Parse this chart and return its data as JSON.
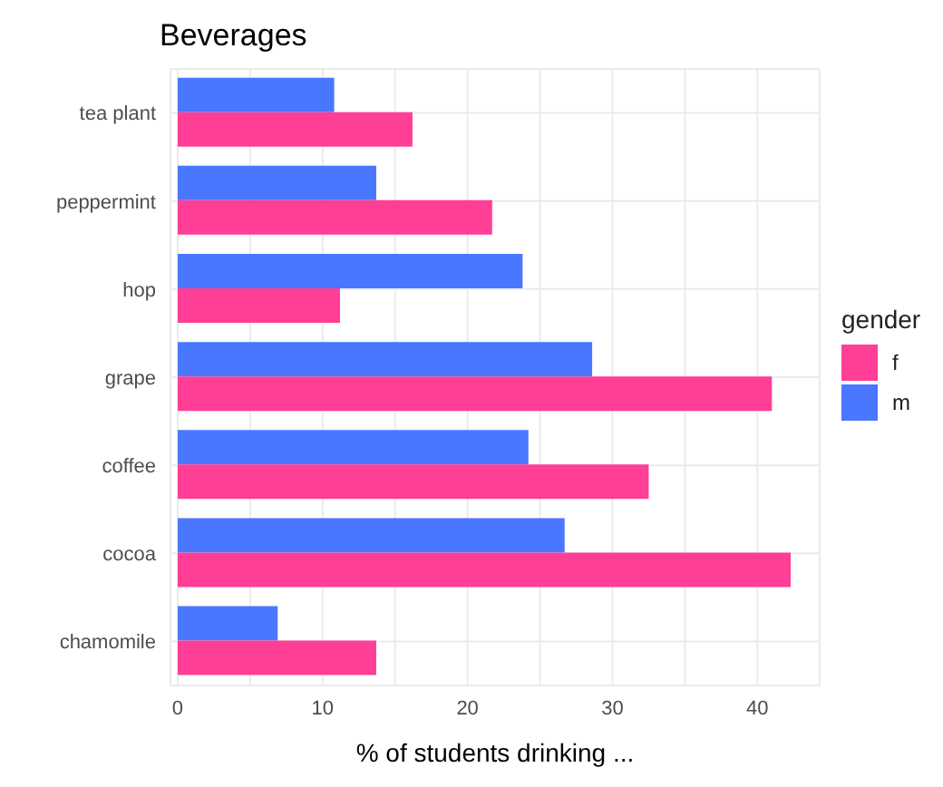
{
  "chart_data": {
    "type": "bar",
    "orientation": "horizontal",
    "title": "Beverages",
    "xlabel": "% of students drinking ...",
    "legend_title": "gender",
    "legend": "right",
    "categories": [
      "tea plant",
      "peppermint",
      "hop",
      "grape",
      "coffee",
      "cocoa",
      "chamomile"
    ],
    "series": [
      {
        "name": "f",
        "color": "#ff3e95",
        "values": [
          16.2,
          21.7,
          11.2,
          41.0,
          32.5,
          42.3,
          13.7
        ]
      },
      {
        "name": "m",
        "color": "#4a77ff",
        "values": [
          10.8,
          13.7,
          23.8,
          28.6,
          24.2,
          26.7,
          6.9
        ]
      }
    ],
    "xlim": [
      -0.5,
      44.3
    ],
    "xticks": [
      0,
      {
        "value": 5,
        "label": null
      },
      10,
      {
        "value": 15,
        "label": null
      },
      20,
      {
        "value": 25,
        "label": null
      },
      30,
      {
        "value": 35,
        "label": null
      },
      40
    ],
    "grid": true
  }
}
